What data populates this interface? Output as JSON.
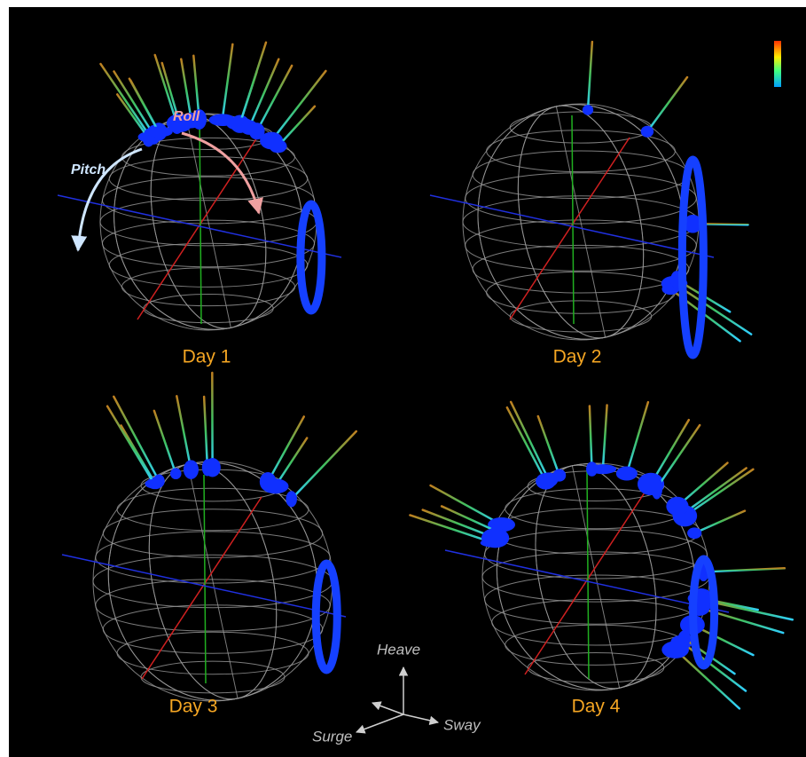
{
  "panels": [
    {
      "label": "Day 1"
    },
    {
      "label": "Day 2"
    },
    {
      "label": "Day 3"
    },
    {
      "label": "Day 4"
    }
  ],
  "annotations": {
    "pitch": "Pitch",
    "roll": "Roll"
  },
  "axes": {
    "heave": "Heave",
    "sway": "Sway",
    "surge": "Surge"
  }
}
